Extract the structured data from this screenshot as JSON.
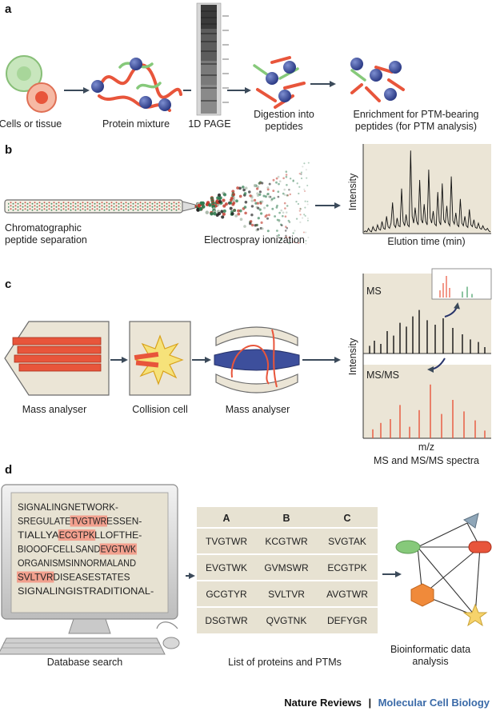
{
  "panels": {
    "a": {
      "letter": "a",
      "labels": {
        "cells": "Cells or tissue",
        "protein_mixture": "Protein mixture",
        "page": "1D PAGE",
        "digestion_1": "Digestion into",
        "digestion_2": "peptides",
        "enrichment_1": "Enrichment for PTM-bearing",
        "enrichment_2": "peptides (for PTM analysis)"
      }
    },
    "b": {
      "letter": "b",
      "labels": {
        "chrom_1": "Chromatographic",
        "chrom_2": "peptide separation",
        "esi": "Electrospray ionization",
        "y_axis": "Intensity",
        "x_axis": "Elution time (min)"
      }
    },
    "c": {
      "letter": "c",
      "labels": {
        "mass_analyser_1": "Mass analyser",
        "collision_cell": "Collision cell",
        "mass_analyser_2": "Mass analyser",
        "ms": "MS",
        "msms": "MS/MS",
        "y_axis": "Intensity",
        "x_axis": "m/z",
        "spectra_caption": "MS and MS/MS spectra"
      }
    },
    "d": {
      "letter": "d",
      "screen_lines": [
        [
          {
            "text": "SIGNALINGNETWORK-",
            "hl": false
          }
        ],
        [
          {
            "text": "SREGULATE",
            "hl": false
          },
          {
            "text": "TVGTWR",
            "hl": true
          },
          {
            "text": "ESSEN-",
            "hl": false
          }
        ],
        [
          {
            "text": "TIALLYA",
            "hl": false
          },
          {
            "text": "ECGTPK",
            "hl": true
          },
          {
            "text": "LLOFTHE-",
            "hl": false
          }
        ],
        [
          {
            "text": "BIOOOFCELLSAND",
            "hl": false
          },
          {
            "text": "EVGTWK",
            "hl": true
          }
        ],
        [
          {
            "text": "ORGANISMSINNORMALAND",
            "hl": false
          }
        ],
        [
          {
            "text": "SVLTVR",
            "hl": true
          },
          {
            "text": "DISEASESTATES",
            "hl": false
          }
        ],
        [
          {
            "text": "SIGNALINGISTRADITIONAL-",
            "hl": false
          }
        ]
      ],
      "table": {
        "headers": [
          "A",
          "B",
          "C"
        ],
        "rows": [
          [
            "TVGTWR",
            "KCGTWR",
            "SVGTAK"
          ],
          [
            "EVGTWK",
            "GVMSWR",
            "ECGTPK"
          ],
          [
            "GCGTYR",
            "SVLTVR",
            "AVGTWR"
          ],
          [
            "DSGTWR",
            "QVGTNK",
            "DEFYGR"
          ]
        ]
      },
      "labels": {
        "database_search": "Database search",
        "list": "List of proteins and PTMs",
        "bioinf_1": "Bioinformatic data",
        "bioinf_2": "analysis"
      }
    }
  },
  "footer": {
    "journal": "Nature Reviews",
    "separator": "|",
    "subject": "Molecular Cell Biology"
  },
  "colors": {
    "red": "#e8553b",
    "blue_bead": "#3d4f9c",
    "green": "#86c97a",
    "highlight": "#f2a08e",
    "panel_bg": "#ebe5d6",
    "table_bg": "#e7e2d2",
    "journal_blue": "#3a6aa8"
  },
  "chart_data": [
    {
      "type": "line",
      "title": "",
      "xlabel": "Elution time (min)",
      "ylabel": "Intensity",
      "note": "chromatogram with unlabeled axes; values are relative intensities",
      "x": [
        1,
        3,
        5,
        7,
        9,
        11,
        13,
        15,
        17,
        19,
        21,
        23,
        25,
        27,
        29,
        31,
        33,
        35,
        37,
        39,
        41,
        43,
        45,
        47,
        49,
        51,
        53,
        55,
        57,
        59,
        61,
        63,
        65,
        67,
        69,
        71,
        73,
        75,
        77,
        79,
        81,
        83,
        85,
        87,
        89,
        91,
        93,
        95,
        97,
        99,
        101,
        103,
        105,
        107,
        109,
        111,
        113,
        115,
        117,
        119,
        121,
        123,
        125,
        127,
        129,
        131,
        133,
        135,
        137,
        139,
        141,
        143,
        145,
        147,
        149,
        151,
        153,
        155,
        157,
        159,
        161,
        163,
        165,
        167,
        169
      ],
      "values": [
        2,
        3,
        2,
        6,
        3,
        2,
        8,
        4,
        3,
        10,
        5,
        4,
        14,
        6,
        5,
        20,
        8,
        6,
        12,
        36,
        10,
        7,
        18,
        9,
        8,
        52,
        14,
        9,
        22,
        10,
        8,
        96,
        20,
        12,
        30,
        14,
        10,
        62,
        16,
        12,
        34,
        14,
        10,
        74,
        18,
        12,
        26,
        11,
        9,
        48,
        14,
        10,
        58,
        16,
        12,
        32,
        12,
        9,
        66,
        15,
        11,
        24,
        10,
        8,
        40,
        12,
        9,
        20,
        9,
        7,
        28,
        10,
        8,
        16,
        7,
        6,
        12,
        6,
        5,
        9,
        5,
        4,
        6,
        3,
        2
      ]
    },
    {
      "type": "bar",
      "title": "",
      "series": [
        {
          "name": "MS",
          "x": [
            8,
            14,
            22,
            30,
            38,
            46,
            54,
            62,
            70,
            80,
            90,
            100,
            112,
            124,
            134,
            144,
            152
          ],
          "values": [
            12,
            20,
            15,
            35,
            28,
            48,
            42,
            58,
            68,
            52,
            45,
            55,
            40,
            30,
            22,
            18,
            10
          ]
        },
        {
          "name": "MS/MS",
          "x": [
            12,
            22,
            34,
            46,
            58,
            70,
            84,
            98,
            112,
            126,
            140,
            152
          ],
          "values": [
            14,
            24,
            30,
            52,
            18,
            44,
            84,
            38,
            60,
            42,
            28,
            12
          ]
        },
        {
          "name": "MS inset",
          "x": [
            8,
            12,
            16,
            20,
            36,
            42,
            48
          ],
          "values": [
            30,
            60,
            90,
            40,
            25,
            45,
            15
          ]
        }
      ],
      "xlabel": "m/z",
      "ylabel": "Intensity",
      "note": "spectra with unlabeled axes; values are relative intensities"
    }
  ]
}
